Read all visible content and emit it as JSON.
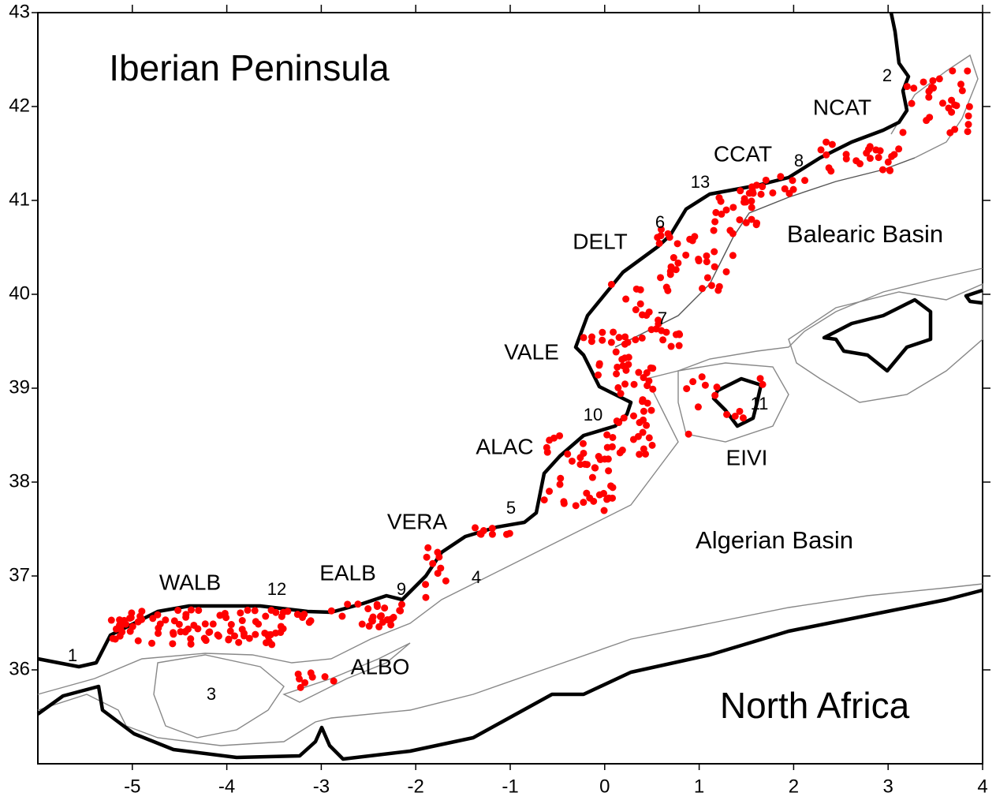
{
  "map": {
    "xlim": [
      -6,
      4
    ],
    "ylim": [
      35,
      43
    ],
    "xticks": [
      -5,
      -4,
      -3,
      -2,
      -1,
      0,
      1,
      2,
      3,
      4
    ],
    "yticks": [
      36,
      37,
      38,
      39,
      40,
      41,
      42,
      43
    ],
    "regions": [
      "Iberian Peninsula",
      "North Africa",
      "Balearic Basin",
      "Algerian Basin"
    ],
    "zones": [
      "NCAT",
      "CCAT",
      "DELT",
      "VALE",
      "ALAC",
      "VERA",
      "EALB",
      "WALB",
      "ALBO",
      "EIVI"
    ],
    "stations": [
      "1",
      "2",
      "3",
      "4",
      "5",
      "6",
      "7",
      "8",
      "9",
      "10",
      "11",
      "12",
      "13"
    ]
  }
}
